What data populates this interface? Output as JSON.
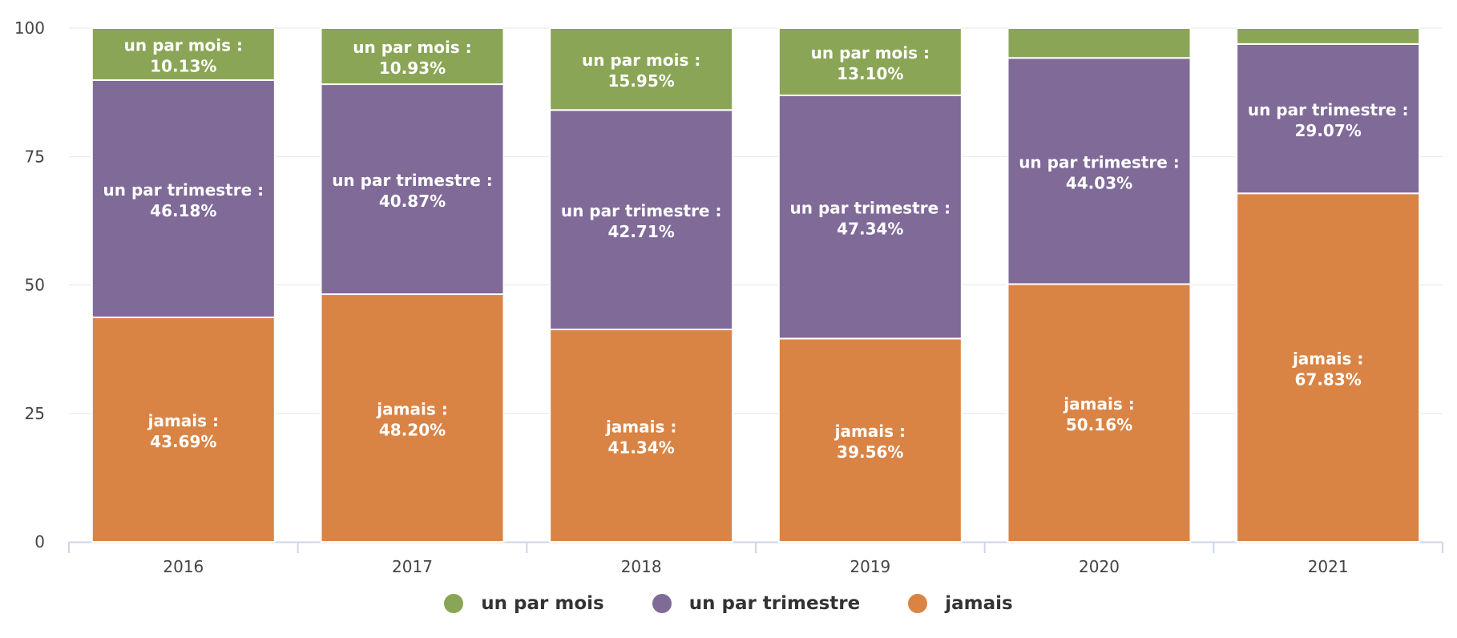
{
  "chart_data": {
    "type": "bar",
    "stacked": true,
    "categories": [
      "2016",
      "2017",
      "2018",
      "2019",
      "2020",
      "2021"
    ],
    "series": [
      {
        "name": "jamais",
        "color": "#d98445",
        "values": [
          43.69,
          48.2,
          41.34,
          39.56,
          50.16,
          67.83
        ],
        "labels": [
          "43.69%",
          "48.20%",
          "41.34%",
          "39.56%",
          "50.16%",
          "67.83%"
        ]
      },
      {
        "name": "un par trimestre",
        "color": "#7f6a98",
        "values": [
          46.18,
          40.87,
          42.71,
          47.34,
          44.03,
          29.07
        ],
        "labels": [
          "46.18%",
          "40.87%",
          "42.71%",
          "47.34%",
          "44.03%",
          "29.07%"
        ]
      },
      {
        "name": "un par mois",
        "color": "#8aa556",
        "values": [
          10.13,
          10.93,
          15.95,
          13.1,
          5.81,
          3.1
        ],
        "labels": [
          "10.13%",
          "10.93%",
          "15.95%",
          "13.10%",
          "",
          ""
        ]
      }
    ],
    "ylim": [
      0,
      100
    ],
    "yticks": [
      "0",
      "25",
      "50",
      "75",
      "100"
    ],
    "grid": true,
    "legend_position": "bottom"
  },
  "legend": [
    {
      "label": "un par mois",
      "color": "#8aa556"
    },
    {
      "label": "un par trimestre",
      "color": "#7f6a98"
    },
    {
      "label": "jamais",
      "color": "#d98445"
    }
  ]
}
